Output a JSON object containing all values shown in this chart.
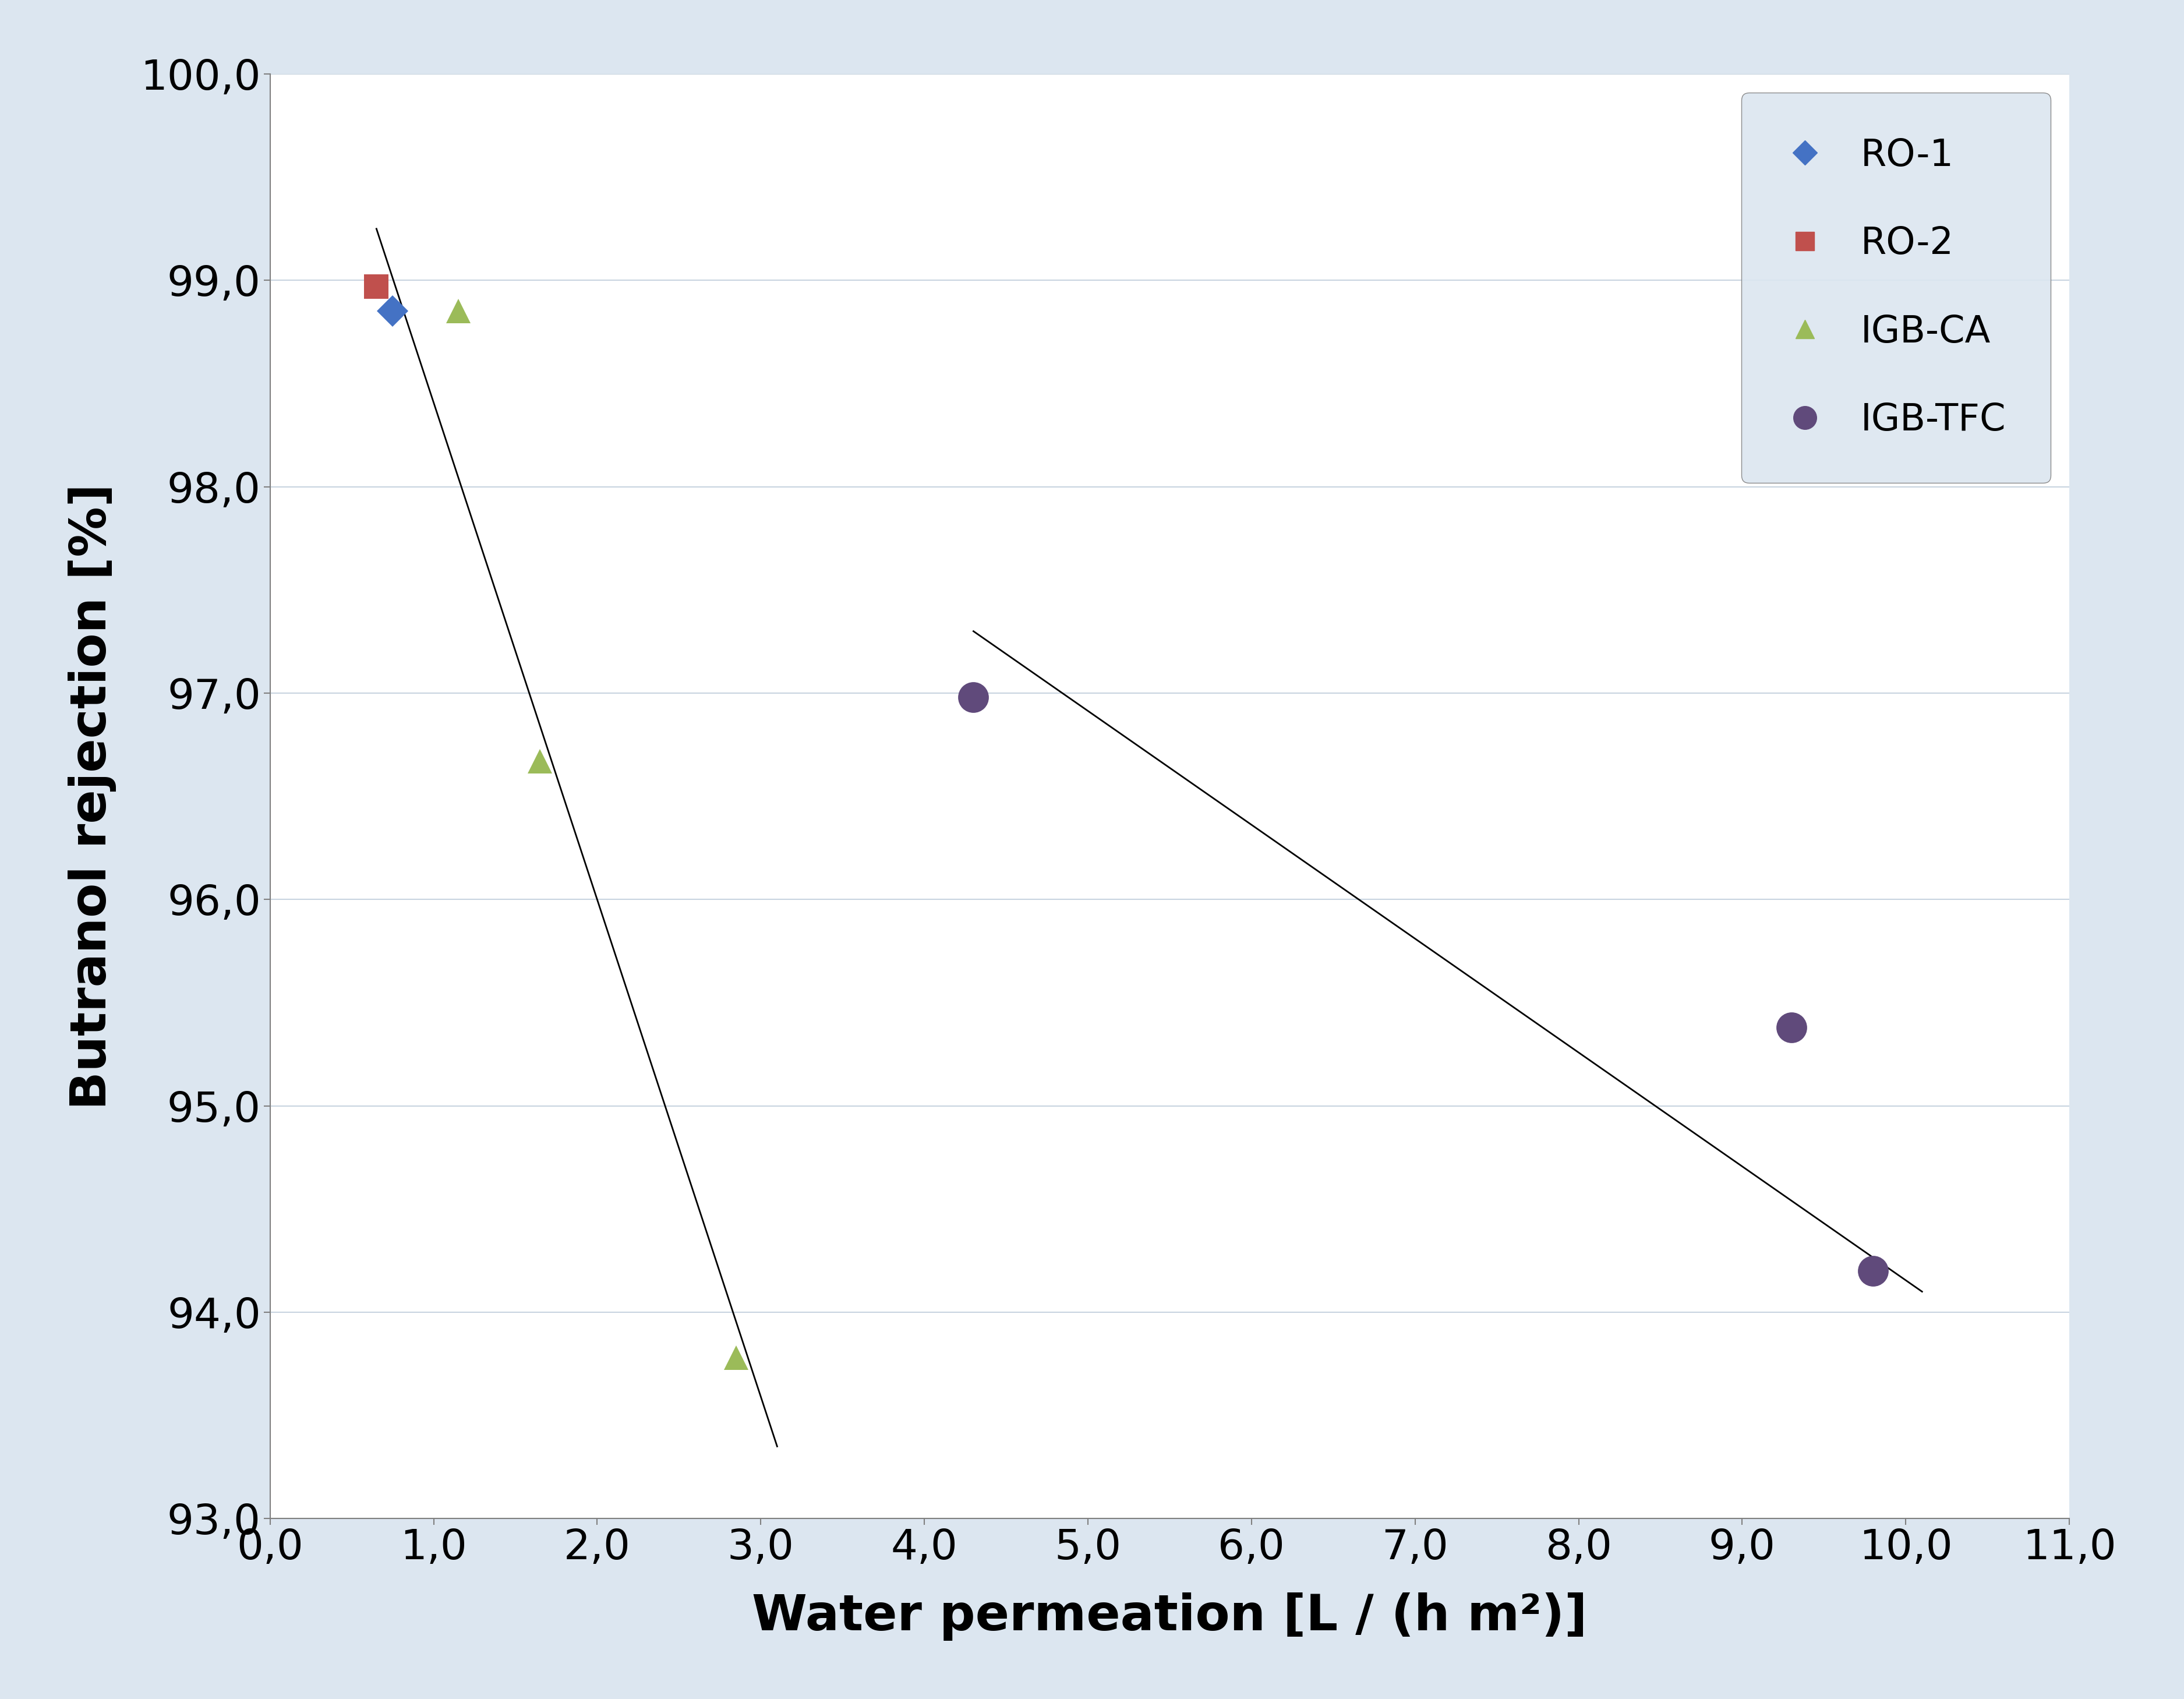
{
  "background_color": "#dce6f0",
  "plot_bg_color": "#ffffff",
  "series": {
    "RO-1": {
      "x": [
        0.75
      ],
      "y": [
        98.85
      ],
      "color": "#4472c4",
      "marker": "D",
      "markersize": 28,
      "label": "RO-1"
    },
    "RO-2": {
      "x": [
        0.65
      ],
      "y": [
        98.97
      ],
      "color": "#c0504d",
      "marker": "s",
      "markersize": 30,
      "label": "RO-2"
    },
    "IGB-CA": {
      "x": [
        1.15,
        1.65,
        2.85
      ],
      "y": [
        98.85,
        96.67,
        93.78
      ],
      "color": "#9bbb59",
      "marker": "^",
      "markersize": 30,
      "label": "IGB-CA"
    },
    "IGB-TFC": {
      "x": [
        4.3,
        9.3,
        9.8
      ],
      "y": [
        96.98,
        95.38,
        94.2
      ],
      "color": "#604a7b",
      "marker": "o",
      "markersize": 38,
      "label": "IGB-TFC"
    }
  },
  "trendlines": [
    {
      "x": [
        0.65,
        3.1
      ],
      "y": [
        99.25,
        93.35
      ],
      "color": "black",
      "linewidth": 2.0
    },
    {
      "x": [
        4.3,
        10.1
      ],
      "y": [
        97.3,
        94.1
      ],
      "color": "black",
      "linewidth": 2.0
    }
  ],
  "xlabel": "Water permeation [L / (h m²)]",
  "ylabel": "Butranol rejection [%]",
  "xlim": [
    0.0,
    11.0
  ],
  "ylim": [
    93.0,
    100.0
  ],
  "xticks": [
    0.0,
    1.0,
    2.0,
    3.0,
    4.0,
    5.0,
    6.0,
    7.0,
    8.0,
    9.0,
    10.0,
    11.0
  ],
  "xticklabels": [
    "0,0",
    "1,0",
    "2,0",
    "3,0",
    "4,0",
    "5,0",
    "6,0",
    "7,0",
    "8,0",
    "9,0",
    "10,0",
    "11,0"
  ],
  "yticks": [
    93.0,
    94.0,
    95.0,
    96.0,
    97.0,
    98.0,
    99.0,
    100.0
  ],
  "yticklabels": [
    "93,0",
    "94,0",
    "95,0",
    "96,0",
    "97,0",
    "98,0",
    "99,0",
    "100,0"
  ],
  "grid_color": "#c8d4e0",
  "axis_color": "#808080",
  "tick_fontsize": 52,
  "label_fontsize": 62,
  "legend_fontsize": 46
}
